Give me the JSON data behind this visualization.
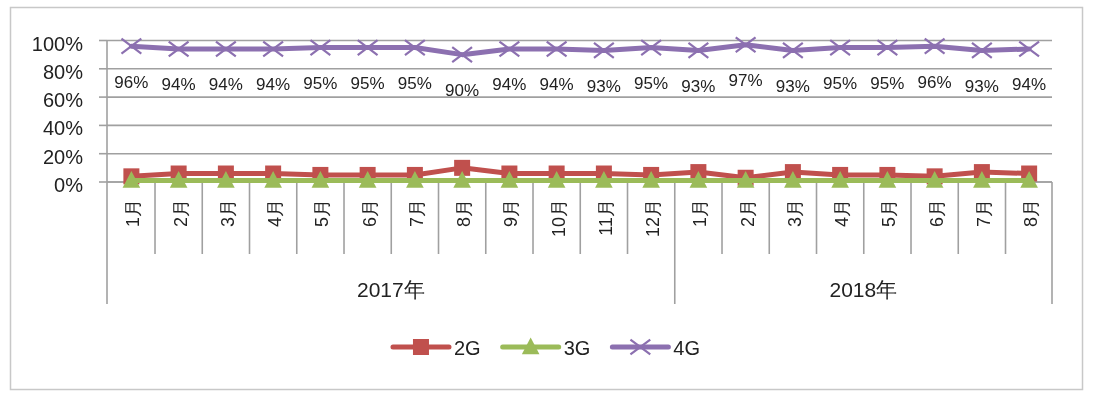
{
  "chart_data": {
    "type": "line",
    "x": [
      "2017-01",
      "2017-02",
      "2017-03",
      "2017-04",
      "2017-05",
      "2017-06",
      "2017-07",
      "2017-08",
      "2017-09",
      "2017-10",
      "2017-11",
      "2017-12",
      "2018-01",
      "2018-02",
      "2018-03",
      "2018-04",
      "2018-05",
      "2018-06",
      "2018-07",
      "2018-08"
    ],
    "xlim": [
      "2016-12-16",
      "2018-08-16"
    ],
    "xticks": [
      {
        "value": "2017-01",
        "label": "1月"
      },
      {
        "value": "2017-02",
        "label": "2月"
      },
      {
        "value": "2017-03",
        "label": "3月"
      },
      {
        "value": "2017-04",
        "label": "4月"
      },
      {
        "value": "2017-05",
        "label": "5月"
      },
      {
        "value": "2017-06",
        "label": "6月"
      },
      {
        "value": "2017-07",
        "label": "7月"
      },
      {
        "value": "2017-08",
        "label": "8月"
      },
      {
        "value": "2017-09",
        "label": "9月"
      },
      {
        "value": "2017-10",
        "label": "10月"
      },
      {
        "value": "2017-11",
        "label": "11月"
      },
      {
        "value": "2017-12",
        "label": "12月"
      },
      {
        "value": "2018-01",
        "label": "1月"
      },
      {
        "value": "2018-02",
        "label": "2月"
      },
      {
        "value": "2018-03",
        "label": "3月"
      },
      {
        "value": "2018-04",
        "label": "4月"
      },
      {
        "value": "2018-05",
        "label": "5月"
      },
      {
        "value": "2018-06",
        "label": "6月"
      },
      {
        "value": "2018-07",
        "label": "7月"
      },
      {
        "value": "2018-08",
        "label": "8月"
      }
    ],
    "ylim": [
      0,
      100
    ],
    "yticks": [
      {
        "value": 0,
        "label": "0%"
      },
      {
        "value": 20,
        "label": "20%"
      },
      {
        "value": 40,
        "label": "40%"
      },
      {
        "value": 60,
        "label": "60%"
      },
      {
        "value": 80,
        "label": "80%"
      },
      {
        "value": 100,
        "label": "100%"
      }
    ],
    "grid": "y",
    "legend": "bottom",
    "annotations": [
      "2017年",
      "2018年"
    ],
    "series": [
      {
        "name": "2G",
        "color": "#c0504d",
        "marker": "square",
        "values": [
          4,
          6,
          6,
          6,
          5,
          5,
          5,
          10,
          6,
          6,
          6,
          5,
          7,
          3,
          7,
          5,
          5,
          4,
          7,
          6
        ]
      },
      {
        "name": "3G",
        "color": "#9bbb59",
        "marker": "triangle",
        "values": [
          1,
          1,
          1,
          1,
          1,
          1,
          1,
          1,
          1,
          1,
          1,
          1,
          1,
          1,
          1,
          1,
          1,
          1,
          1,
          1
        ]
      },
      {
        "name": "4G",
        "color": "#8c70b0",
        "marker": "cross",
        "values": [
          96,
          94,
          94,
          94,
          95,
          95,
          95,
          90,
          94,
          94,
          93,
          95,
          93,
          97,
          93,
          95,
          95,
          96,
          93,
          94
        ],
        "value_labels": [
          "96%",
          "94%",
          "94%",
          "94%",
          "95%",
          "95%",
          "95%",
          "90%",
          "94%",
          "94%",
          "93%",
          "95%",
          "93%",
          "97%",
          "93%",
          "95%",
          "95%",
          "96%",
          "93%",
          "94%"
        ]
      }
    ]
  }
}
